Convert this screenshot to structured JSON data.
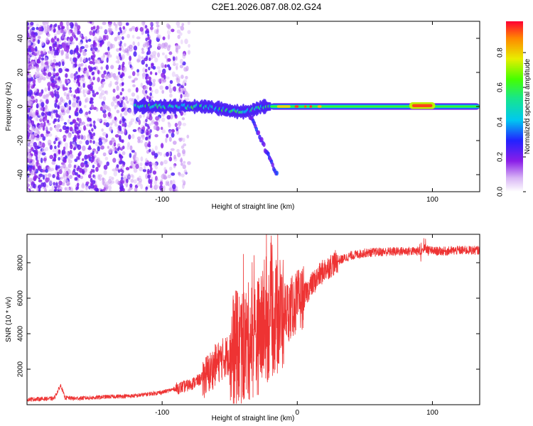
{
  "title": "C2E1.2026.087.08.02.G24",
  "chart_data": [
    {
      "type": "heatmap",
      "name": "spectrogram",
      "xlabel": "Height of straight line (km)",
      "ylabel": "Frequency (Hz)",
      "xlim": [
        -200,
        135
      ],
      "ylim": [
        -50,
        50
      ],
      "x_ticks": [
        -100,
        0,
        100
      ],
      "x_tick_labels": [
        "-100",
        "",
        "100"
      ],
      "y_ticks": [
        -40,
        -20,
        0,
        20,
        40
      ],
      "y_tick_labels": [
        "-40",
        "-20",
        "0",
        "20",
        "40"
      ],
      "colorbar": {
        "label": "Normalized spectral amplitude",
        "range": [
          0,
          0.98
        ],
        "ticks": [
          0.0,
          0.2,
          0.4,
          0.6,
          0.8
        ],
        "tick_labels": [
          "0.0",
          "0.2",
          "0.4",
          "0.6",
          "0.8"
        ]
      },
      "features": [
        {
          "x_range": [
            -200,
            -80
          ],
          "freq_range": [
            -50,
            50
          ],
          "amplitude": 0.1,
          "description": "scattered low-amplitude noise"
        },
        {
          "x_range": [
            -120,
            -20
          ],
          "freq_center": 0,
          "freq_width": 8,
          "amplitude": 0.45
        },
        {
          "x_range": [
            -20,
            135
          ],
          "freq_center": 0,
          "freq_width": 3,
          "amplitude": 0.6
        },
        {
          "x_range": [
            -15,
            20
          ],
          "freq_center": 0,
          "amplitude": 0.95,
          "description": "high-amplitude segments"
        },
        {
          "x_range": [
            85,
            100
          ],
          "freq_center": 0.5,
          "amplitude": 0.95
        },
        {
          "x_range": [
            -35,
            -15
          ],
          "freq_range": [
            -40,
            -5
          ],
          "amplitude": 0.3,
          "description": "descending tail"
        }
      ]
    },
    {
      "type": "line",
      "name": "snr",
      "xlabel": "Height of straight line (km)",
      "ylabel": "SNR (10 * v/v)",
      "xlim": [
        -200,
        135
      ],
      "ylim": [
        0,
        9600
      ],
      "x_ticks": [
        -100,
        0,
        100
      ],
      "x_tick_labels": [
        "-100",
        "0",
        "100"
      ],
      "y_ticks": [
        2000,
        4000,
        6000,
        8000
      ],
      "y_tick_labels": [
        "2000",
        "4000",
        "6000",
        "8000"
      ],
      "series": [
        {
          "name": "SNR",
          "color": "#ee3333",
          "x": [
            -200,
            -180,
            -175,
            -172,
            -165,
            -150,
            -140,
            -120,
            -100,
            -90,
            -80,
            -70,
            -65,
            -60,
            -55,
            -50,
            -45,
            -40,
            -35,
            -30,
            -25,
            -20,
            -15,
            -10,
            -5,
            0,
            5,
            10,
            20,
            30,
            40,
            50,
            60,
            80,
            90,
            95,
            100,
            110,
            120,
            135
          ],
          "y": [
            300,
            350,
            1100,
            400,
            350,
            400,
            450,
            500,
            700,
            900,
            1100,
            1500,
            1800,
            2300,
            2600,
            2900,
            3100,
            3300,
            3600,
            3800,
            4300,
            4800,
            5000,
            5200,
            5400,
            5800,
            6100,
            6700,
            7600,
            8100,
            8400,
            8550,
            8600,
            8650,
            8650,
            8800,
            8650,
            8650,
            8700,
            8700
          ]
        }
      ]
    }
  ]
}
